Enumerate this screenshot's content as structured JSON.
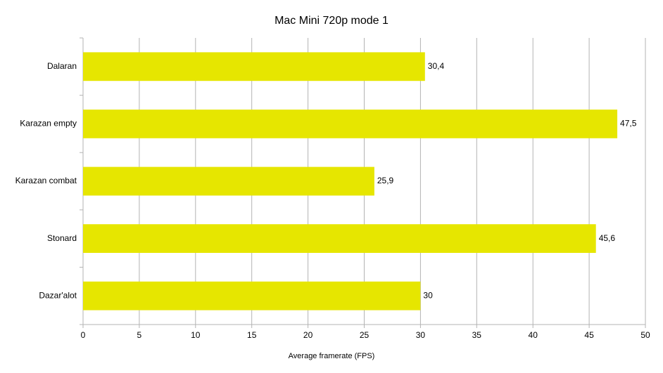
{
  "chart_data": {
    "type": "bar",
    "orientation": "horizontal",
    "title": "Mac Mini 720p mode 1",
    "xlabel": "Average framerate (FPS)",
    "categories": [
      "Dalaran",
      "Karazan empty",
      "Karazan combat",
      "Stonard",
      "Dazar'alot"
    ],
    "values": [
      30.4,
      47.5,
      25.9,
      45.6,
      30
    ],
    "value_labels": [
      "30,4",
      "47,5",
      "25,9",
      "45,6",
      "30"
    ],
    "color": "#e6e600",
    "xlim": [
      0,
      50
    ],
    "xticks": [
      0,
      5,
      10,
      15,
      20,
      25,
      30,
      35,
      40,
      45,
      50
    ],
    "grid": true
  }
}
